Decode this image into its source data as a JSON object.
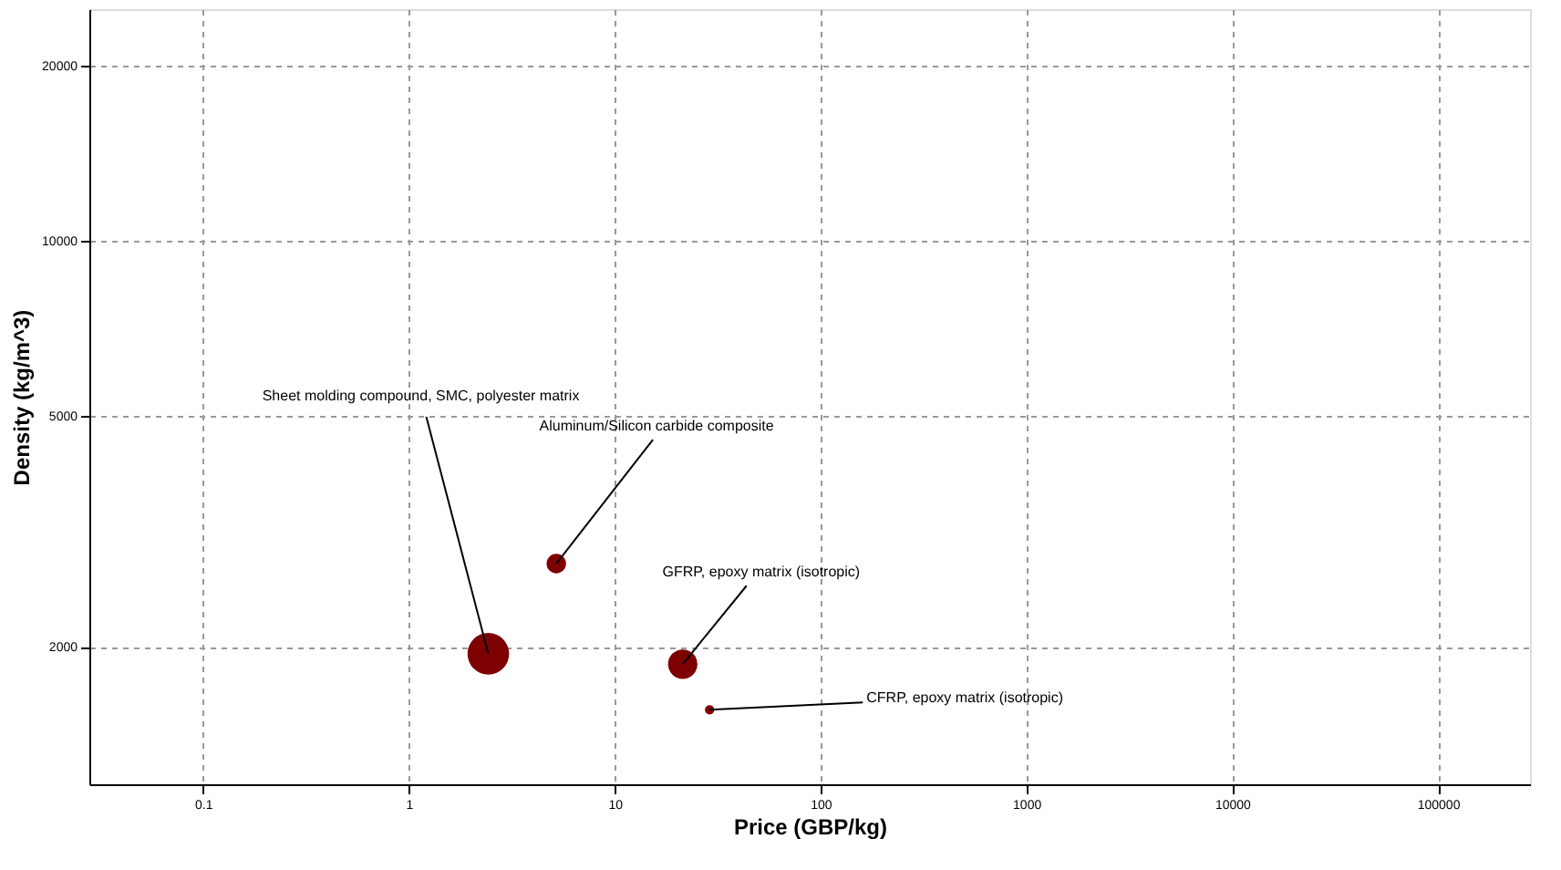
{
  "chart_data": {
    "type": "bubble",
    "xlabel": "Price (GBP/kg)",
    "ylabel": "Density (kg/m^3)",
    "x": [
      2.43,
      5.2,
      21.4,
      28.9
    ],
    "values": [
      1945,
      2780,
      1867,
      1558
    ],
    "sizes": [
      1,
      0.22,
      0.5,
      0.05
    ],
    "color": "#7f0000",
    "xlim": [
      0.028,
      280000
    ],
    "ylim": [
      1160,
      25000
    ],
    "xticks": [
      0.1,
      1,
      10,
      100,
      1000,
      10000,
      100000
    ],
    "yticks": [
      2000,
      5000,
      10000,
      20000
    ],
    "log": "xy",
    "grid": true,
    "marker": "circle",
    "annotations": [
      {
        "text": "Sheet molding compound, SMC, polyester matrix",
        "x": 2.43,
        "y": 1945
      },
      {
        "text": "Aluminum/Silicon carbide composite",
        "x": 5.2,
        "y": 2780
      },
      {
        "text": "GFRP, epoxy matrix (isotropic)",
        "x": 21.4,
        "y": 1867
      },
      {
        "text": "CFRP, epoxy matrix (isotropic)",
        "x": 28.9,
        "y": 1558
      }
    ]
  }
}
